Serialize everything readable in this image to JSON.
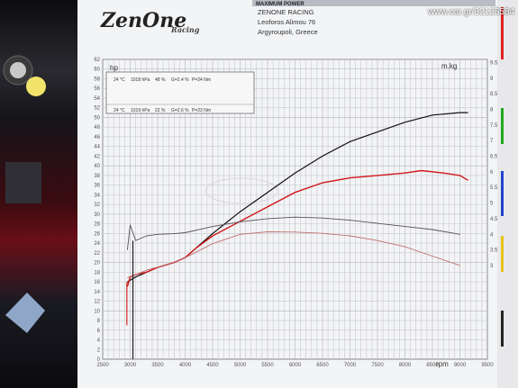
{
  "header": {
    "logo_text": "ZenOne",
    "logo_sub": "Racing",
    "title_banner": "MAXIMUM POWER",
    "company": "ZENONE RACING",
    "address": "Leoforos Alimou 76",
    "city": "Argyroupoli, Greece"
  },
  "watermark": "www.car.gr/32125584",
  "legend": {
    "row1": {
      "temp": "24 °C",
      "pressure": "1018 hPa",
      "humidity": "48 %",
      "g": "G=2.4 %",
      "p": "P=24 Nm"
    },
    "row2": {
      "temp": "24 °C",
      "pressure": "1019 hPa",
      "humidity": "22 %",
      "g": "G=2.6 %",
      "p": "P=23 Nm"
    }
  },
  "colors": {
    "run1": "#111111",
    "run2": "#d01818",
    "run1_torque": "#55505a",
    "run2_torque": "#c07070"
  },
  "chart_data": {
    "type": "line",
    "xlabel": "rpm",
    "ylabel_left": "hp",
    "ylabel_right": "m.kg",
    "xlim": [
      2500,
      9500
    ],
    "ylim": [
      0,
      62
    ],
    "y2lim": [
      0,
      9.6
    ],
    "x_ticks": [
      2500,
      3000,
      3500,
      4000,
      4500,
      5000,
      5500,
      6000,
      6500,
      7000,
      7500,
      8000,
      8500,
      9000,
      9500
    ],
    "y_ticks": [
      0,
      2,
      4,
      6,
      8,
      10,
      12,
      14,
      16,
      18,
      20,
      22,
      24,
      26,
      28,
      30,
      32,
      34,
      36,
      38,
      40,
      42,
      44,
      46,
      48,
      50,
      52,
      54,
      56,
      58,
      60,
      62
    ],
    "y2_ticks": [
      3,
      3.5,
      4,
      4.5,
      5,
      5.5,
      6,
      6.5,
      7,
      7.5,
      8,
      8.5,
      9,
      9.5
    ],
    "series": [
      {
        "axis": "left",
        "x": [
          2950,
          3100,
          3300,
          3500,
          3800,
          4000,
          4200,
          4500,
          5000,
          5500,
          6000,
          6500,
          7000,
          7500,
          8000,
          8500,
          9000,
          9150
        ],
        "y": [
          16,
          17,
          18,
          19,
          20,
          21,
          23,
          26,
          30.5,
          34.5,
          38.5,
          42,
          45,
          47,
          49,
          50.5,
          51,
          51
        ]
      },
      {
        "axis": "left",
        "x": [
          2950,
          3000,
          3100,
          3300,
          3500,
          3800,
          4000,
          4200,
          4500,
          5000,
          5500,
          6000,
          6500,
          7000,
          7500,
          8000,
          8300,
          8700,
          9000,
          9150
        ],
        "y": [
          15,
          17,
          17.5,
          18,
          19,
          20,
          21,
          23,
          25.5,
          28.5,
          31.5,
          34.5,
          36.5,
          37.5,
          38,
          38.5,
          39,
          38.5,
          38,
          37
        ]
      },
      {
        "axis": "right",
        "x": [
          2950,
          3000,
          3100,
          3300,
          3500,
          3800,
          4000,
          4500,
          5000,
          5500,
          6000,
          6500,
          7000,
          7500,
          8000,
          8500,
          9000
        ],
        "y": [
          3.5,
          4.3,
          3.8,
          3.95,
          4.0,
          4.02,
          4.05,
          4.25,
          4.4,
          4.5,
          4.55,
          4.52,
          4.45,
          4.35,
          4.25,
          4.15,
          4.0
        ]
      },
      {
        "axis": "right",
        "x": [
          2950,
          3000,
          3100,
          3300,
          3500,
          3800,
          4000,
          4500,
          5000,
          5500,
          6000,
          6500,
          7000,
          7500,
          8000,
          8500,
          9000
        ],
        "y": [
          2.6,
          2.65,
          2.7,
          2.85,
          2.95,
          3.1,
          3.25,
          3.7,
          4.0,
          4.08,
          4.07,
          4.03,
          3.95,
          3.8,
          3.6,
          3.3,
          3.0
        ]
      }
    ]
  }
}
